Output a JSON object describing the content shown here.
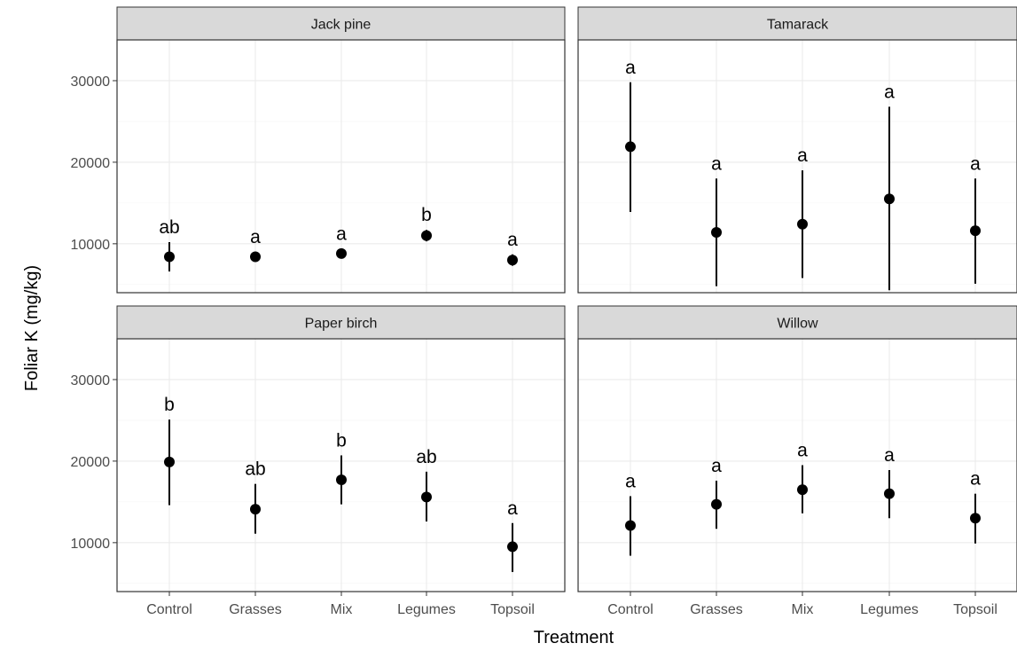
{
  "chart_data": {
    "type": "scatter",
    "style": "faceted point-range (mean with error bars)",
    "xlabel": "Treatment",
    "ylabel": "Foliar K (mg/kg)",
    "categories": [
      "Control",
      "Grasses",
      "Mix",
      "Legumes",
      "Topsoil"
    ],
    "ylim": [
      4000,
      35000
    ],
    "yticks": [
      10000,
      20000,
      30000
    ],
    "grid": true,
    "point_color": "#000000",
    "facets": [
      {
        "name": "Jack pine",
        "mean": [
          8400,
          8400,
          8800,
          11000,
          8000
        ],
        "lower": [
          6600,
          7800,
          8200,
          10300,
          7300
        ],
        "upper": [
          10200,
          9000,
          9400,
          11700,
          8700
        ],
        "letters": [
          "ab",
          "a",
          "a",
          "b",
          "a"
        ]
      },
      {
        "name": "Tamarack",
        "mean": [
          21900,
          11400,
          12400,
          15500,
          11600
        ],
        "lower": [
          13900,
          4800,
          5800,
          4300,
          5100
        ],
        "upper": [
          29800,
          18000,
          19000,
          26800,
          18000
        ],
        "letters": [
          "a",
          "a",
          "a",
          "a",
          "a"
        ]
      },
      {
        "name": "Paper birch",
        "mean": [
          19900,
          14100,
          17700,
          15600,
          9500
        ],
        "lower": [
          14600,
          11100,
          14700,
          12600,
          6400
        ],
        "upper": [
          25100,
          17200,
          20700,
          18700,
          12400
        ],
        "letters": [
          "b",
          "ab",
          "b",
          "ab",
          "a"
        ]
      },
      {
        "name": "Willow",
        "mean": [
          12100,
          14700,
          16500,
          16000,
          13000
        ],
        "lower": [
          8400,
          11700,
          13600,
          13000,
          9900
        ],
        "upper": [
          15700,
          17600,
          19500,
          18900,
          16000
        ],
        "letters": [
          "a",
          "a",
          "a",
          "a",
          "a"
        ]
      }
    ]
  }
}
